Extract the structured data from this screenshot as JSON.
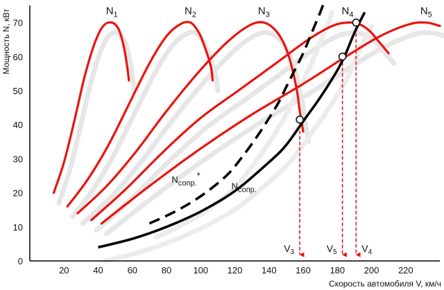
{
  "chart_data": {
    "type": "line",
    "title": "",
    "xlabel": "Скорость автомобиля V, км/ч",
    "ylabel": "Мощность N, кВт",
    "xlim": [
      0,
      240
    ],
    "ylim": [
      0,
      75
    ],
    "x_ticks": [
      20,
      40,
      60,
      80,
      100,
      120,
      140,
      160,
      180,
      200,
      220
    ],
    "y_ticks": [
      0,
      10,
      20,
      30,
      40,
      50,
      60,
      70
    ],
    "grid": false,
    "power_curves": [
      {
        "base": "N",
        "sub": "1",
        "color": "#e8140f",
        "x": [
          14,
          20,
          26,
          32,
          38,
          43,
          48,
          52,
          55,
          57,
          58
        ],
        "y": [
          20,
          29,
          41,
          54,
          64,
          69,
          70,
          68,
          63,
          57,
          53
        ]
      },
      {
        "base": "N",
        "sub": "2",
        "color": "#e8140f",
        "x": [
          22,
          34,
          46,
          58,
          70,
          80,
          88,
          94,
          99,
          103,
          106,
          107
        ],
        "y": [
          16,
          24,
          34,
          46,
          58,
          66,
          69.5,
          70,
          67,
          62,
          57,
          53
        ]
      },
      {
        "base": "N",
        "sub": "3",
        "color": "#e8140f",
        "x": [
          28,
          45,
          62,
          80,
          98,
          115,
          128,
          137,
          145,
          151,
          156,
          158,
          160
        ],
        "y": [
          14,
          22,
          32,
          44,
          55,
          64,
          69,
          70,
          67,
          61,
          51,
          44,
          38
        ]
      },
      {
        "base": "N",
        "sub": "4",
        "color": "#e8140f",
        "x": [
          36,
          56,
          78,
          100,
          122,
          144,
          163,
          177,
          186,
          193,
          199,
          205,
          210
        ],
        "y": [
          12,
          21,
          32,
          42,
          50,
          58,
          65,
          69,
          70,
          69.5,
          67.5,
          64,
          61
        ]
      },
      {
        "base": "N",
        "sub": "5",
        "color": "#e8140f",
        "x": [
          42,
          70,
          100,
          130,
          160,
          185,
          205,
          222,
          232,
          240
        ],
        "y": [
          11,
          22,
          33,
          43,
          52,
          60,
          66,
          69.5,
          70,
          69
        ]
      }
    ],
    "resistance_curves": [
      {
        "base": "N",
        "sub": "сопр.",
        "mark": "",
        "style": "solid",
        "color": "#000000",
        "x": [
          40,
          60,
          80,
          100,
          120,
          140,
          150,
          160,
          170,
          180,
          185,
          190,
          196
        ],
        "y": [
          4,
          6.5,
          10,
          14.5,
          20.5,
          29,
          34,
          41,
          48,
          56,
          61,
          67,
          73
        ]
      },
      {
        "base": "N",
        "sub": "сопр.",
        "mark": "*",
        "style": "dashed",
        "color": "#000000",
        "x": [
          70,
          85,
          100,
          115,
          125,
          135,
          145,
          150,
          155,
          160,
          165,
          170,
          173
        ],
        "y": [
          11,
          14.5,
          19,
          25,
          31,
          38,
          46,
          51,
          56,
          61,
          67,
          73,
          77
        ]
      }
    ],
    "intersections": [
      {
        "x": 158,
        "y": 41.5,
        "label_base": "V",
        "label_sub": "3"
      },
      {
        "x": 183,
        "y": 60,
        "label_base": "V",
        "label_sub": "5"
      },
      {
        "x": 191,
        "y": 70,
        "label_base": "V",
        "label_sub": "4"
      }
    ]
  }
}
